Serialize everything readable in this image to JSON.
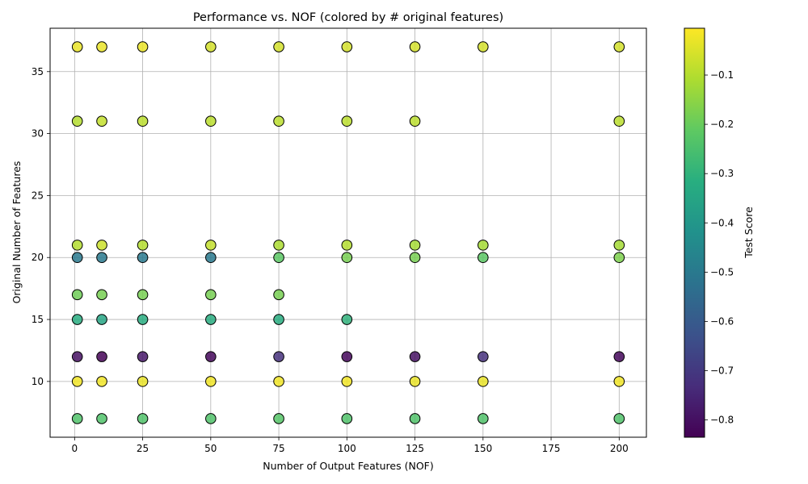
{
  "chart_data": {
    "type": "scatter",
    "title": "Performance vs. NOF (colored by # original features)",
    "xlabel": "Number of Output Features (NOF)",
    "ylabel": "Original Number of Features",
    "colorbar_label": "Test Score",
    "xlim": [
      -9,
      210
    ],
    "ylim": [
      5.5,
      38.5
    ],
    "xticks": [
      0,
      25,
      50,
      75,
      100,
      125,
      150,
      175,
      200
    ],
    "yticks": [
      10,
      15,
      20,
      25,
      30,
      35
    ],
    "cbar_ticks": [
      -0.8,
      -0.7,
      -0.6,
      -0.5,
      -0.4,
      -0.3,
      -0.2,
      -0.1
    ],
    "cbar_ticklabels": [
      "−0.8",
      "−0.7",
      "−0.6",
      "−0.5",
      "−0.4",
      "−0.3",
      "−0.2",
      "−0.1"
    ],
    "cbar_range": [
      -0.835,
      -0.005
    ],
    "colormap": "viridis",
    "grid": true,
    "marker_edge_color": "#000000",
    "points": [
      {
        "x": 1,
        "y": 37,
        "score": -0.03
      },
      {
        "x": 10,
        "y": 37,
        "score": -0.03
      },
      {
        "x": 25,
        "y": 37,
        "score": -0.03
      },
      {
        "x": 50,
        "y": 37,
        "score": -0.06
      },
      {
        "x": 75,
        "y": 37,
        "score": -0.06
      },
      {
        "x": 100,
        "y": 37,
        "score": -0.06
      },
      {
        "x": 125,
        "y": 37,
        "score": -0.06
      },
      {
        "x": 150,
        "y": 37,
        "score": -0.06
      },
      {
        "x": 200,
        "y": 37,
        "score": -0.06
      },
      {
        "x": 1,
        "y": 31,
        "score": -0.1
      },
      {
        "x": 10,
        "y": 31,
        "score": -0.08
      },
      {
        "x": 25,
        "y": 31,
        "score": -0.09
      },
      {
        "x": 50,
        "y": 31,
        "score": -0.09
      },
      {
        "x": 75,
        "y": 31,
        "score": -0.09
      },
      {
        "x": 100,
        "y": 31,
        "score": -0.09
      },
      {
        "x": 125,
        "y": 31,
        "score": -0.09
      },
      {
        "x": 200,
        "y": 31,
        "score": -0.09
      },
      {
        "x": 1,
        "y": 21,
        "score": -0.1
      },
      {
        "x": 10,
        "y": 21,
        "score": -0.07
      },
      {
        "x": 25,
        "y": 21,
        "score": -0.1
      },
      {
        "x": 50,
        "y": 21,
        "score": -0.08
      },
      {
        "x": 75,
        "y": 21,
        "score": -0.11
      },
      {
        "x": 100,
        "y": 21,
        "score": -0.1
      },
      {
        "x": 125,
        "y": 21,
        "score": -0.12
      },
      {
        "x": 150,
        "y": 21,
        "score": -0.12
      },
      {
        "x": 200,
        "y": 21,
        "score": -0.12
      },
      {
        "x": 1,
        "y": 20,
        "score": -0.5
      },
      {
        "x": 10,
        "y": 20,
        "score": -0.5
      },
      {
        "x": 25,
        "y": 20,
        "score": -0.5
      },
      {
        "x": 50,
        "y": 20,
        "score": -0.5
      },
      {
        "x": 75,
        "y": 20,
        "score": -0.22
      },
      {
        "x": 100,
        "y": 20,
        "score": -0.18
      },
      {
        "x": 125,
        "y": 20,
        "score": -0.18
      },
      {
        "x": 150,
        "y": 20,
        "score": -0.22
      },
      {
        "x": 200,
        "y": 20,
        "score": -0.17
      },
      {
        "x": 1,
        "y": 17,
        "score": -0.19
      },
      {
        "x": 10,
        "y": 17,
        "score": -0.18
      },
      {
        "x": 25,
        "y": 17,
        "score": -0.18
      },
      {
        "x": 50,
        "y": 17,
        "score": -0.18
      },
      {
        "x": 75,
        "y": 17,
        "score": -0.18
      },
      {
        "x": 1,
        "y": 15,
        "score": -0.32
      },
      {
        "x": 10,
        "y": 15,
        "score": -0.35
      },
      {
        "x": 25,
        "y": 15,
        "score": -0.32
      },
      {
        "x": 50,
        "y": 15,
        "score": -0.32
      },
      {
        "x": 75,
        "y": 15,
        "score": -0.32
      },
      {
        "x": 100,
        "y": 15,
        "score": -0.3
      },
      {
        "x": 1,
        "y": 12,
        "score": -0.8
      },
      {
        "x": 10,
        "y": 12,
        "score": -0.83
      },
      {
        "x": 25,
        "y": 12,
        "score": -0.78
      },
      {
        "x": 50,
        "y": 12,
        "score": -0.82
      },
      {
        "x": 75,
        "y": 12,
        "score": -0.72
      },
      {
        "x": 100,
        "y": 12,
        "score": -0.82
      },
      {
        "x": 125,
        "y": 12,
        "score": -0.8
      },
      {
        "x": 150,
        "y": 12,
        "score": -0.72
      },
      {
        "x": 200,
        "y": 12,
        "score": -0.82
      },
      {
        "x": 1,
        "y": 10,
        "score": -0.02
      },
      {
        "x": 10,
        "y": 10,
        "score": -0.02
      },
      {
        "x": 25,
        "y": 10,
        "score": -0.03
      },
      {
        "x": 50,
        "y": 10,
        "score": -0.02
      },
      {
        "x": 75,
        "y": 10,
        "score": -0.02
      },
      {
        "x": 100,
        "y": 10,
        "score": -0.02
      },
      {
        "x": 125,
        "y": 10,
        "score": -0.03
      },
      {
        "x": 150,
        "y": 10,
        "score": -0.03
      },
      {
        "x": 200,
        "y": 10,
        "score": -0.02
      },
      {
        "x": 1,
        "y": 7,
        "score": -0.24
      },
      {
        "x": 10,
        "y": 7,
        "score": -0.24
      },
      {
        "x": 25,
        "y": 7,
        "score": -0.24
      },
      {
        "x": 50,
        "y": 7,
        "score": -0.24
      },
      {
        "x": 75,
        "y": 7,
        "score": -0.23
      },
      {
        "x": 100,
        "y": 7,
        "score": -0.24
      },
      {
        "x": 125,
        "y": 7,
        "score": -0.24
      },
      {
        "x": 150,
        "y": 7,
        "score": -0.24
      },
      {
        "x": 200,
        "y": 7,
        "score": -0.24
      }
    ]
  }
}
